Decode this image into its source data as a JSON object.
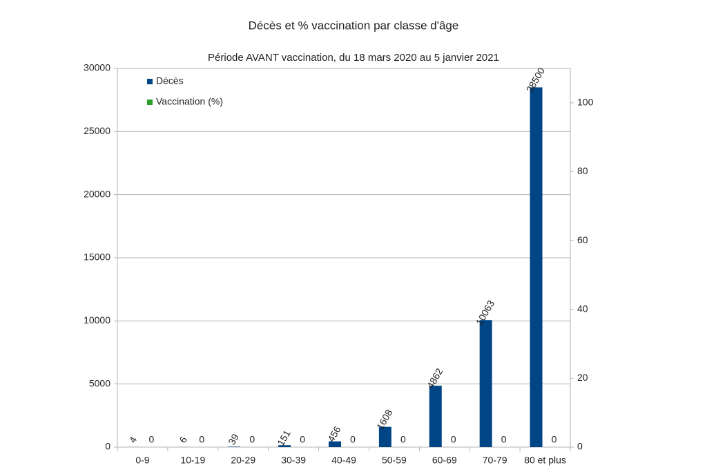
{
  "chart_data": {
    "type": "bar",
    "title": "Décès et % vaccination par classe d'âge",
    "subtitle": "Période AVANT vaccination, du 18 mars 2020 au 5 janvier 2021",
    "categories": [
      "0-9",
      "10-19",
      "20-29",
      "30-39",
      "40-49",
      "50-59",
      "60-69",
      "70-79",
      "80 et plus"
    ],
    "series": [
      {
        "name": "Décès",
        "color": "#004586",
        "values": [
          4,
          6,
          39,
          151,
          456,
          1608,
          4862,
          10063,
          28500
        ]
      },
      {
        "name": "Vaccination (%)",
        "color": "#2ca02c",
        "axis": "y2",
        "values": [
          0,
          0,
          0,
          0,
          0,
          0,
          0,
          0,
          0
        ]
      }
    ],
    "ylim": [
      0,
      30000
    ],
    "yticks": [
      0,
      5000,
      10000,
      15000,
      20000,
      25000,
      30000
    ],
    "y2lim": [
      0,
      110
    ],
    "y2ticks": [
      0,
      20,
      40,
      60,
      80,
      100
    ],
    "grid": true,
    "legend": "top-left"
  }
}
